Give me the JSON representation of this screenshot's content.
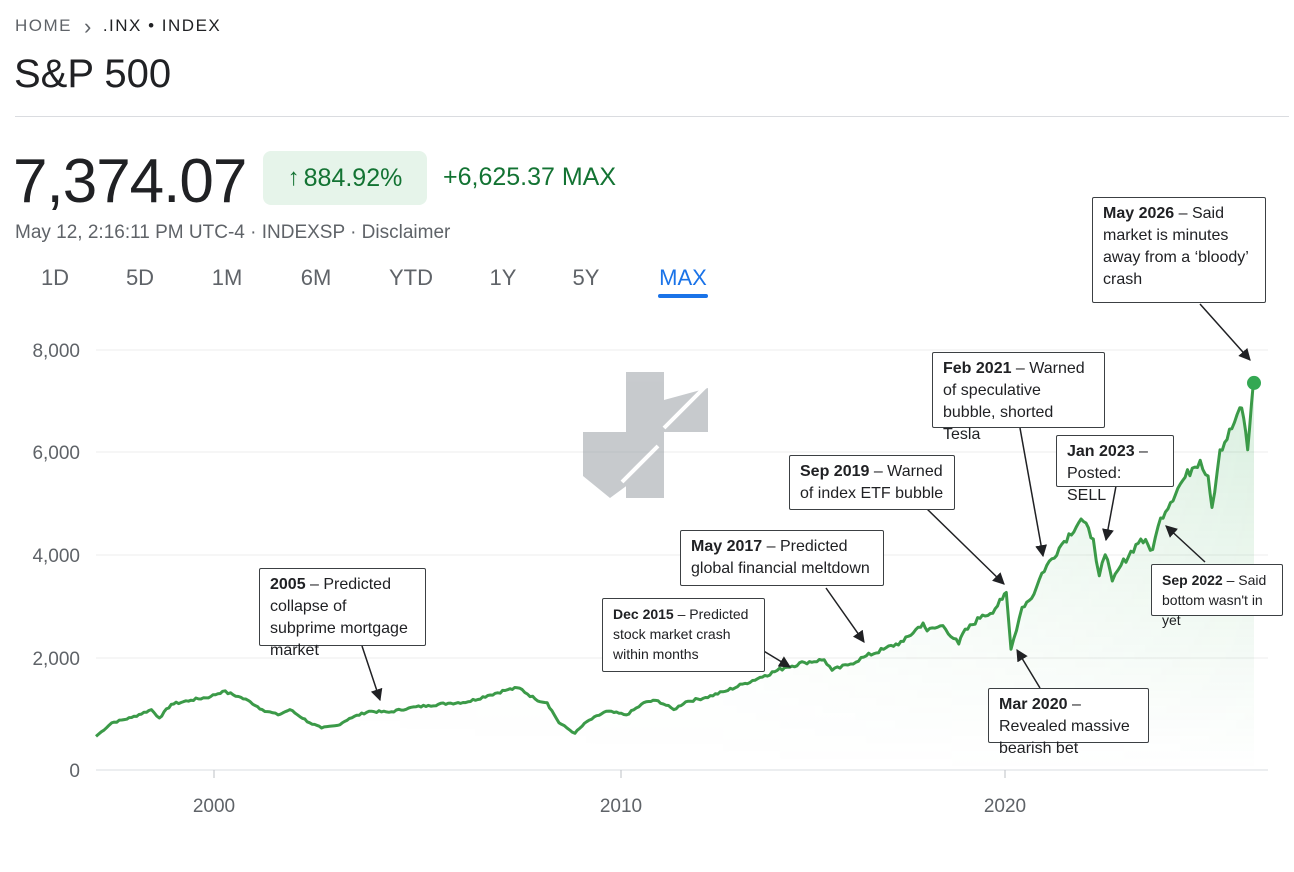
{
  "breadcrumb": {
    "home": "HOME",
    "symbol": ".INX • INDEX"
  },
  "title": "S&P 500",
  "quote": {
    "price": "7,374.07",
    "percent_change": "884.92%",
    "abs_change": "+6,625.37 MAX",
    "meta": "May 12, 2:16:11 PM UTC-4 · INDEXSP · Disclaimer"
  },
  "ranges": [
    "1D",
    "5D",
    "1M",
    "6M",
    "YTD",
    "1Y",
    "5Y",
    "MAX"
  ],
  "active_range": "MAX",
  "colors": {
    "line": "#3b9a48",
    "fill": "#34a853",
    "up": "#137333",
    "active": "#1a73e8"
  },
  "annotations": [
    {
      "bold": "2005",
      "text": " – Predicted collapse of subprime mortgage market"
    },
    {
      "bold": "Dec 2015",
      "text": " – Predicted stock market crash within months"
    },
    {
      "bold": "May 2017",
      "text": " – Predicted global financial meltdown"
    },
    {
      "bold": "Sep 2019",
      "text": " – Warned of index ETF bubble"
    },
    {
      "bold": "Mar 2020",
      "text": " – Revealed massive bearish bet"
    },
    {
      "bold": "Feb 2021",
      "text": " – Warned of speculative bubble, shorted Tesla"
    },
    {
      "bold": "Jan 2023",
      "text": " – Posted: SELL"
    },
    {
      "bold": "Sep 2022",
      "text": " – Said bottom wasn't in yet"
    },
    {
      "bold": "May 2026",
      "text": " – Said market is minutes away from a ‘bloody’ crash"
    }
  ],
  "chart_data": {
    "type": "line",
    "y_ticks": [
      "0",
      "2,000",
      "4,000",
      "6,000",
      "8,000"
    ],
    "x_ticks": [
      "2000",
      "2010",
      "2020"
    ],
    "ylim": [
      0,
      8000
    ],
    "xlim": [
      1997.1,
      2026.4
    ],
    "grid": true,
    "series": [
      {
        "x": [
          1997.1,
          1997.5,
          1998.0,
          1998.5,
          1998.7,
          1999.0,
          1999.5,
          2000.0,
          2000.3,
          2000.7,
          2001.0,
          2001.3,
          2001.7,
          2002.0,
          2002.5,
          2002.8,
          2003.2,
          2003.5,
          2004.0,
          2004.5,
          2005.0,
          2005.5,
          2006.0,
          2006.5,
          2007.0,
          2007.5,
          2007.8,
          2008.2,
          2008.5,
          2008.8,
          2009.2,
          2009.5,
          2010.0,
          2010.5,
          2011.0,
          2011.3,
          2011.7,
          2012.0,
          2012.5,
          2013.0,
          2013.5,
          2014.0,
          2014.5,
          2015.0,
          2015.5,
          2015.7,
          2016.1,
          2016.5,
          2017.0,
          2017.5,
          2018.0,
          2018.1,
          2018.5,
          2018.9,
          2019.0,
          2019.5,
          2019.7,
          2020.0,
          2020.1,
          2020.22,
          2020.5,
          2020.8,
          2021.0,
          2021.5,
          2021.99,
          2022.3,
          2022.45,
          2022.6,
          2022.78,
          2023.0,
          2023.5,
          2023.8,
          2024.0,
          2024.5,
          2024.8,
          2025.0,
          2025.2,
          2025.3,
          2025.5,
          2025.8,
          2026.0,
          2026.1,
          2026.2,
          2026.3,
          2026.36
        ],
        "y": [
          640,
          900,
          1000,
          1150,
          990,
          1250,
          1330,
          1400,
          1500,
          1400,
          1300,
          1150,
          1050,
          1150,
          900,
          800,
          850,
          980,
          1120,
          1100,
          1180,
          1230,
          1270,
          1300,
          1420,
          1530,
          1560,
          1350,
          1280,
          900,
          700,
          920,
          1120,
          1050,
          1300,
          1320,
          1150,
          1300,
          1380,
          1500,
          1650,
          1800,
          1950,
          2050,
          2100,
          1900,
          2000,
          2150,
          2300,
          2450,
          2800,
          2650,
          2750,
          2400,
          2600,
          2950,
          2980,
          3250,
          3380,
          2300,
          3100,
          3350,
          3750,
          4300,
          4780,
          4400,
          3700,
          4100,
          3600,
          3900,
          4400,
          4200,
          4800,
          5450,
          5750,
          5900,
          5600,
          5000,
          6100,
          6500,
          6900,
          6700,
          6100,
          7000,
          7374
        ]
      }
    ]
  }
}
